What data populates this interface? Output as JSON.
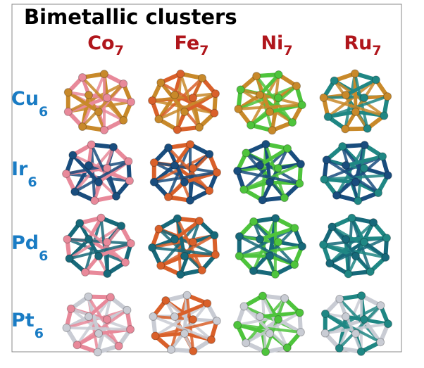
{
  "title": "Bimetallic clusters",
  "columns": [
    {
      "element": "Co",
      "count": "7"
    },
    {
      "element": "Fe",
      "count": "7"
    },
    {
      "element": "Ni",
      "count": "7"
    },
    {
      "element": "Ru",
      "count": "7"
    }
  ],
  "rows": [
    {
      "element": "Cu",
      "count": "6"
    },
    {
      "element": "Ir",
      "count": "6"
    },
    {
      "element": "Pd",
      "count": "6"
    },
    {
      "element": "Pt",
      "count": "6"
    }
  ]
}
